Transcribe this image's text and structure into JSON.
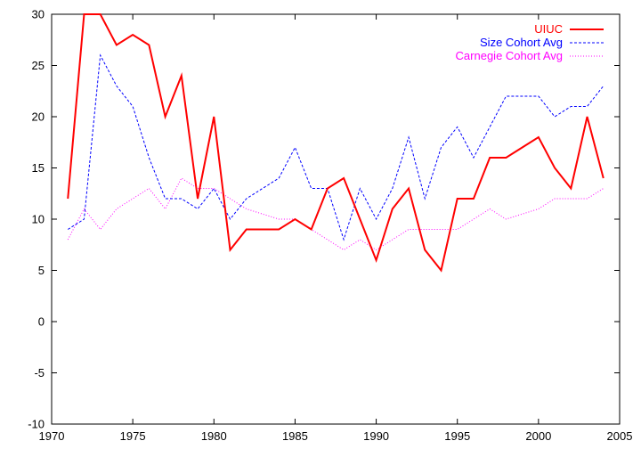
{
  "chart_data": {
    "type": "line",
    "title": "",
    "xlabel": "",
    "ylabel": "",
    "xlim": [
      1970,
      2005
    ],
    "ylim": [
      -10,
      30
    ],
    "xticks": [
      1970,
      1975,
      1980,
      1985,
      1990,
      1995,
      2000,
      2005
    ],
    "yticks": [
      -10,
      -5,
      0,
      5,
      10,
      15,
      20,
      25,
      30
    ],
    "grid": false,
    "legend_position": "top-right",
    "x": [
      1971,
      1972,
      1973,
      1974,
      1975,
      1976,
      1977,
      1978,
      1979,
      1980,
      1981,
      1982,
      1983,
      1984,
      1985,
      1986,
      1987,
      1988,
      1989,
      1990,
      1991,
      1992,
      1993,
      1994,
      1995,
      1996,
      1997,
      1998,
      1999,
      2000,
      2001,
      2002,
      2003,
      2004
    ],
    "series": [
      {
        "name": "UIUC",
        "color": "#ff0000",
        "style": "solid",
        "values": [
          12,
          30,
          30,
          27,
          28,
          27,
          20,
          24,
          12,
          20,
          7,
          9,
          9,
          9,
          10,
          9,
          13,
          14,
          10,
          6,
          11,
          13,
          7,
          5,
          12,
          12,
          16,
          16,
          17,
          18,
          15,
          13,
          20,
          14
        ]
      },
      {
        "name": "Size Cohort Avg",
        "color": "#0000ff",
        "style": "dashed",
        "values": [
          9,
          10,
          26,
          23,
          21,
          16,
          12,
          12,
          11,
          13,
          10,
          12,
          13,
          14,
          17,
          13,
          13,
          8,
          13,
          10,
          13,
          18,
          12,
          17,
          19,
          16,
          19,
          22,
          22,
          22,
          20,
          21,
          21,
          23
        ]
      },
      {
        "name": "Carnegie Cohort Avg",
        "color": "#ff00ff",
        "style": "dotted",
        "values": [
          8,
          11,
          9,
          11,
          12,
          13,
          11,
          14,
          13,
          13,
          12,
          11,
          10.5,
          10,
          10,
          9,
          8,
          7,
          8,
          7,
          8,
          9,
          9,
          9,
          9,
          10,
          11,
          10,
          10.5,
          11,
          12,
          12,
          12,
          13
        ]
      }
    ]
  }
}
